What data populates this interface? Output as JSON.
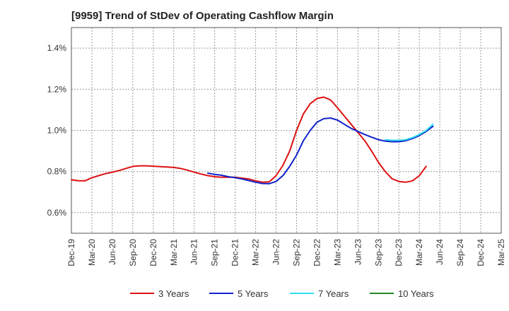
{
  "chart_data": {
    "type": "line",
    "title": "[9959]  Trend of StDev of Operating Cashflow Margin",
    "xlabel": "",
    "ylabel": "",
    "grid": true,
    "y_axis": {
      "min": 0.5,
      "max": 1.5,
      "ticks": [
        0.6,
        0.8,
        1.0,
        1.2,
        1.4
      ],
      "tick_labels": [
        "0.6%",
        "0.8%",
        "1.0%",
        "1.2%",
        "1.4%"
      ]
    },
    "x_axis": {
      "n_months": 63,
      "tick_labels": [
        "Dec-19",
        "Mar-20",
        "Jun-20",
        "Sep-20",
        "Dec-20",
        "Mar-21",
        "Jun-21",
        "Sep-21",
        "Dec-21",
        "Mar-22",
        "Jun-22",
        "Sep-22",
        "Dec-22",
        "Mar-23",
        "Jun-23",
        "Sep-23",
        "Dec-23",
        "Mar-24",
        "Jun-24",
        "Sep-24",
        "Dec-24",
        "Mar-25"
      ]
    },
    "series": [
      {
        "name": "3 Years",
        "color": "#dd1111",
        "start": 0,
        "values": [
          0.76,
          0.755,
          0.755,
          0.77,
          0.78,
          0.79,
          0.797,
          0.805,
          0.815,
          0.825,
          0.828,
          0.828,
          0.826,
          0.824,
          0.822,
          0.82,
          0.815,
          0.807,
          0.797,
          0.788,
          0.78,
          0.775,
          0.772,
          0.773,
          0.772,
          0.768,
          0.764,
          0.755,
          0.748,
          0.75,
          0.78,
          0.83,
          0.9,
          1.0,
          1.08,
          1.13,
          1.155,
          1.162,
          1.148,
          1.11,
          1.07,
          1.03,
          0.99,
          0.95,
          0.9,
          0.845,
          0.8,
          0.765,
          0.752,
          0.748,
          0.755,
          0.78,
          0.825
        ]
      },
      {
        "name": "5 Years",
        "color": "#1122cc",
        "start": 20,
        "values": [
          0.792,
          0.786,
          0.782,
          0.775,
          0.77,
          0.764,
          0.756,
          0.748,
          0.742,
          0.741,
          0.752,
          0.78,
          0.825,
          0.88,
          0.95,
          1.0,
          1.04,
          1.057,
          1.06,
          1.05,
          1.03,
          1.01,
          0.995,
          0.98,
          0.967,
          0.955,
          0.948,
          0.945,
          0.945,
          0.95,
          0.96,
          0.975,
          0.995,
          1.02
        ]
      },
      {
        "name": "7 Years",
        "color": "#33ddee",
        "start": 46,
        "values": [
          0.955,
          0.952,
          0.952,
          0.955,
          0.965,
          0.98,
          1.0,
          1.03
        ]
      },
      {
        "name": "10 Years",
        "color": "#228822",
        "start": 53,
        "values": []
      }
    ]
  }
}
